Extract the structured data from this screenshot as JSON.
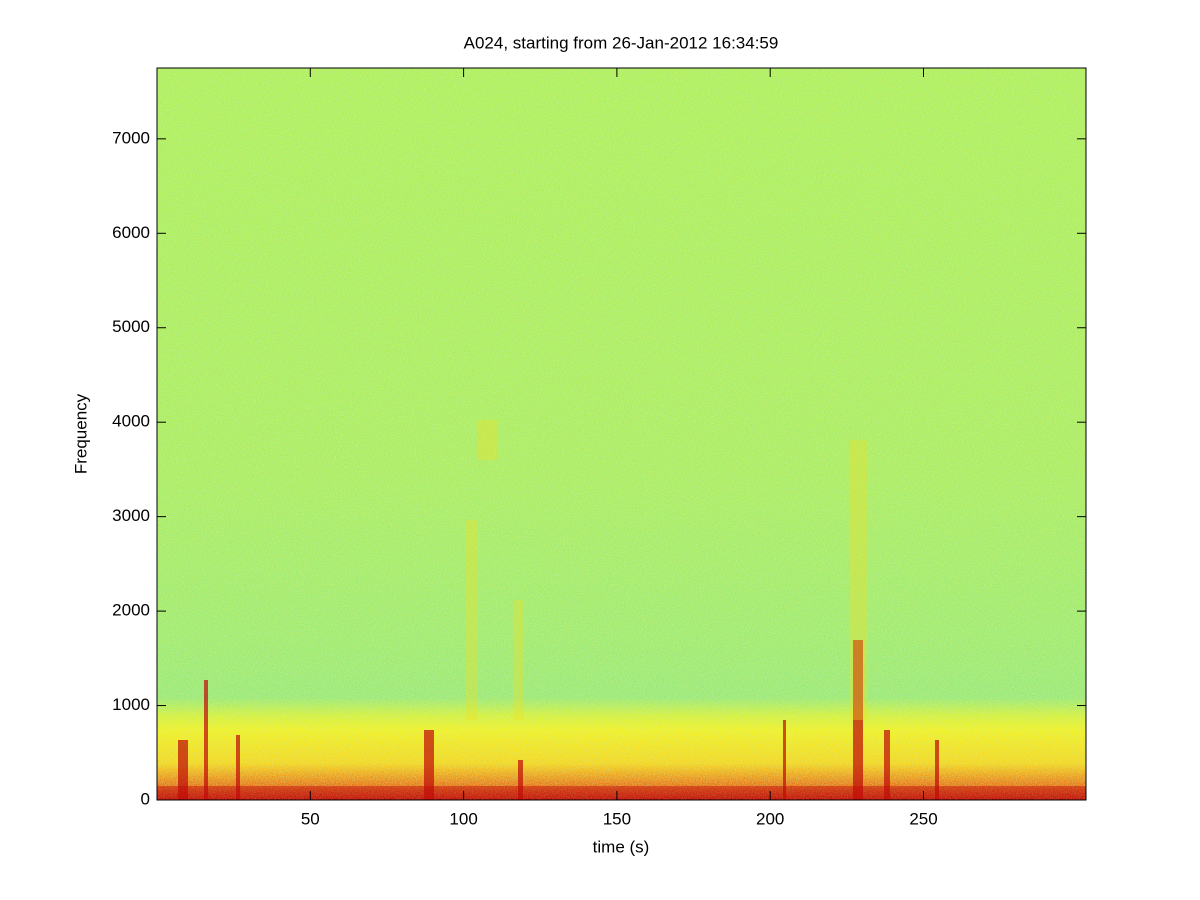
{
  "chart_data": {
    "type": "spectrogram",
    "title": "A024, starting from 26-Jan-2012 16:34:59",
    "x_label": "time (s)",
    "y_label": "Frequency",
    "xlim": [
      0,
      303
    ],
    "xticks": [
      50,
      100,
      150,
      200,
      250
    ],
    "ylim": [
      0,
      7750
    ],
    "yticks": [
      0,
      1000,
      2000,
      3000,
      4000,
      5000,
      6000,
      7000
    ]
  }
}
